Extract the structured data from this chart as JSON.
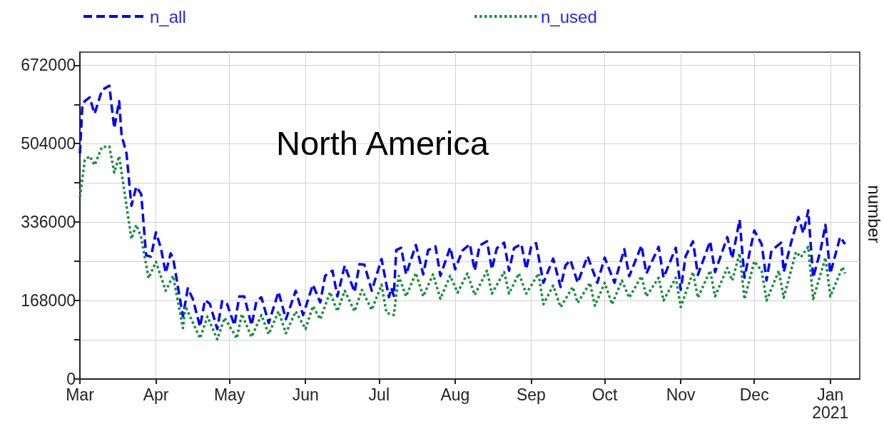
{
  "chart_data": {
    "type": "line",
    "title": "North America",
    "ylabel": "number",
    "xlim": [
      "2020-03-01",
      "2021-01-13"
    ],
    "xticks": [
      {
        "value": "2020-03-01",
        "label": "Mar"
      },
      {
        "value": "2020-04-01",
        "label": "Apr"
      },
      {
        "value": "2020-05-01",
        "label": "May"
      },
      {
        "value": "2020-06-01",
        "label": "Jun"
      },
      {
        "value": "2020-07-01",
        "label": "Jul"
      },
      {
        "value": "2020-08-01",
        "label": "Aug"
      },
      {
        "value": "2020-09-01",
        "label": "Sep"
      },
      {
        "value": "2020-10-01",
        "label": "Oct"
      },
      {
        "value": "2020-11-01",
        "label": "Nov"
      },
      {
        "value": "2020-12-01",
        "label": "Dec"
      },
      {
        "value": "2021-01-01",
        "label": "Jan\n2021"
      }
    ],
    "ylim": [
      0,
      700000
    ],
    "yticks": [
      0,
      {
        "value": 84000,
        "label": null
      },
      168000,
      {
        "value": 252000,
        "label": null
      },
      336000,
      {
        "value": 420000,
        "label": null
      },
      504000,
      {
        "value": 588000,
        "label": null
      },
      672000
    ],
    "grid": true,
    "legend": "top",
    "series": [
      {
        "name": "n_all",
        "color": "#0000ff",
        "line_style": "dashed",
        "x": [
          "2020-03-01",
          "2020-03-02",
          "2020-03-03",
          "2020-03-05",
          "2020-03-07",
          "2020-03-10",
          "2020-03-13",
          "2020-03-15",
          "2020-03-17",
          "2020-03-18",
          "2020-03-20",
          "2020-03-22",
          "2020-03-24",
          "2020-03-26",
          "2020-03-28",
          "2020-03-30",
          "2020-04-01",
          "2020-04-03",
          "2020-04-05",
          "2020-04-07",
          "2020-04-08",
          "2020-04-12",
          "2020-04-14",
          "2020-04-16",
          "2020-04-19",
          "2020-04-21",
          "2020-04-23",
          "2020-04-26",
          "2020-04-28",
          "2020-04-30",
          "2020-05-03",
          "2020-05-05",
          "2020-05-07",
          "2020-05-10",
          "2020-05-12",
          "2020-05-14",
          "2020-05-17",
          "2020-05-21",
          "2020-05-24",
          "2020-05-28",
          "2020-05-31",
          "2020-06-04",
          "2020-06-07",
          "2020-06-09",
          "2020-06-12",
          "2020-06-14",
          "2020-06-17",
          "2020-06-21",
          "2020-06-23",
          "2020-06-25",
          "2020-06-28",
          "2020-07-02",
          "2020-07-05",
          "2020-07-06",
          "2020-07-07",
          "2020-07-08",
          "2020-07-10",
          "2020-07-12",
          "2020-07-16",
          "2020-07-19",
          "2020-07-21",
          "2020-07-24",
          "2020-07-26",
          "2020-07-30",
          "2020-08-01",
          "2020-08-04",
          "2020-08-07",
          "2020-08-09",
          "2020-08-11",
          "2020-08-14",
          "2020-08-16",
          "2020-08-18",
          "2020-08-21",
          "2020-08-23",
          "2020-08-25",
          "2020-08-28",
          "2020-08-30",
          "2020-09-01",
          "2020-09-03",
          "2020-09-06",
          "2020-09-10",
          "2020-09-13",
          "2020-09-15",
          "2020-09-17",
          "2020-09-20",
          "2020-09-24",
          "2020-09-28",
          "2020-10-01",
          "2020-10-05",
          "2020-10-09",
          "2020-10-11",
          "2020-10-16",
          "2020-10-18",
          "2020-10-23",
          "2020-10-25",
          "2020-10-30",
          "2020-11-01",
          "2020-11-03",
          "2020-11-06",
          "2020-11-08",
          "2020-11-13",
          "2020-11-15",
          "2020-11-20",
          "2020-11-22",
          "2020-11-25",
          "2020-11-27",
          "2020-11-29",
          "2020-12-01",
          "2020-12-04",
          "2020-12-06",
          "2020-12-08",
          "2020-12-12",
          "2020-12-13",
          "2020-12-16",
          "2020-12-19",
          "2020-12-21",
          "2020-12-23",
          "2020-12-25",
          "2020-12-28",
          "2020-12-30",
          "2021-01-01",
          "2021-01-05",
          "2021-01-07"
        ],
        "values": [
          483000,
          587000,
          595000,
          603000,
          568000,
          619000,
          628000,
          537000,
          595000,
          522000,
          483000,
          371000,
          412000,
          396000,
          265000,
          262000,
          314000,
          281000,
          227000,
          269000,
          259000,
          134000,
          194000,
          172000,
          112000,
          169000,
          161000,
          107000,
          167000,
          161000,
          115000,
          177000,
          177000,
          115000,
          167000,
          175000,
          120000,
          187000,
          128000,
          189000,
          137000,
          202000,
          164000,
          221000,
          232000,
          177000,
          243000,
          186000,
          246000,
          245000,
          189000,
          257000,
          175000,
          195000,
          178000,
          276000,
          281000,
          224000,
          287000,
          224000,
          276000,
          284000,
          221000,
          282000,
          235000,
          275000,
          289000,
          232000,
          286000,
          295000,
          235000,
          280000,
          292000,
          232000,
          280000,
          289000,
          235000,
          283000,
          291000,
          206000,
          258000,
          197000,
          243000,
          255000,
          206000,
          263000,
          206000,
          260000,
          206000,
          278000,
          220000,
          286000,
          226000,
          283000,
          217000,
          281000,
          191000,
          263000,
          295000,
          223000,
          295000,
          229000,
          304000,
          258000,
          341000,
          217000,
          269000,
          318000,
          289000,
          211000,
          275000,
          292000,
          229000,
          292000,
          347000,
          312000,
          361000,
          217000,
          275000,
          330000,
          226000,
          304000,
          289000
        ]
      },
      {
        "name": "n_used",
        "color": "#18903c",
        "line_style": "dotted",
        "x": [
          "2020-03-01",
          "2020-03-03",
          "2020-03-05",
          "2020-03-07",
          "2020-03-10",
          "2020-03-13",
          "2020-03-15",
          "2020-03-17",
          "2020-03-19",
          "2020-03-22",
          "2020-03-24",
          "2020-03-26",
          "2020-03-29",
          "2020-04-01",
          "2020-04-05",
          "2020-04-08",
          "2020-04-12",
          "2020-04-13",
          "2020-04-19",
          "2020-04-22",
          "2020-04-26",
          "2020-04-29",
          "2020-05-04",
          "2020-05-06",
          "2020-05-10",
          "2020-05-14",
          "2020-05-17",
          "2020-05-21",
          "2020-05-24",
          "2020-05-28",
          "2020-06-01",
          "2020-06-04",
          "2020-06-07",
          "2020-06-11",
          "2020-06-14",
          "2020-06-17",
          "2020-06-21",
          "2020-06-24",
          "2020-06-28",
          "2020-07-02",
          "2020-07-04",
          "2020-07-07",
          "2020-07-09",
          "2020-07-12",
          "2020-07-16",
          "2020-07-19",
          "2020-07-23",
          "2020-07-26",
          "2020-07-30",
          "2020-08-02",
          "2020-08-06",
          "2020-08-09",
          "2020-08-14",
          "2020-08-16",
          "2020-08-21",
          "2020-08-23",
          "2020-08-27",
          "2020-08-30",
          "2020-09-04",
          "2020-09-06",
          "2020-09-10",
          "2020-09-13",
          "2020-09-18",
          "2020-09-20",
          "2020-09-25",
          "2020-09-27",
          "2020-10-01",
          "2020-10-04",
          "2020-10-08",
          "2020-10-11",
          "2020-10-16",
          "2020-10-18",
          "2020-10-23",
          "2020-10-25",
          "2020-10-30",
          "2020-11-01",
          "2020-11-06",
          "2020-11-08",
          "2020-11-13",
          "2020-11-15",
          "2020-11-20",
          "2020-11-22",
          "2020-11-25",
          "2020-11-27",
          "2020-12-01",
          "2020-12-04",
          "2020-12-06",
          "2020-12-11",
          "2020-12-13",
          "2020-12-18",
          "2020-12-20",
          "2020-12-23",
          "2020-12-25",
          "2020-12-30",
          "2021-01-01",
          "2021-01-06",
          "2021-01-07"
        ],
        "values": [
          390000,
          469000,
          477000,
          458000,
          497000,
          498000,
          442000,
          477000,
          407000,
          300000,
          330000,
          303000,
          216000,
          251000,
          189000,
          221000,
          109000,
          156000,
          87000,
          134000,
          85000,
          131000,
          87000,
          139000,
          90000,
          137000,
          96000,
          145000,
          98000,
          145000,
          107000,
          156000,
          128000,
          186000,
          145000,
          189000,
          145000,
          191000,
          148000,
          202000,
          142000,
          137000,
          221000,
          177000,
          227000,
          177000,
          224000,
          172000,
          221000,
          185000,
          226000,
          180000,
          232000,
          183000,
          229000,
          183000,
          226000,
          183000,
          226000,
          160000,
          200000,
          154000,
          197000,
          163000,
          206000,
          157000,
          206000,
          160000,
          211000,
          174000,
          220000,
          177000,
          217000,
          168000,
          217000,
          154000,
          229000,
          174000,
          232000,
          177000,
          238000,
          211000,
          269000,
          171000,
          252000,
          232000,
          168000,
          232000,
          174000,
          272000,
          261000,
          283000,
          171000,
          260000,
          177000,
          240000,
          226000
        ]
      }
    ]
  }
}
